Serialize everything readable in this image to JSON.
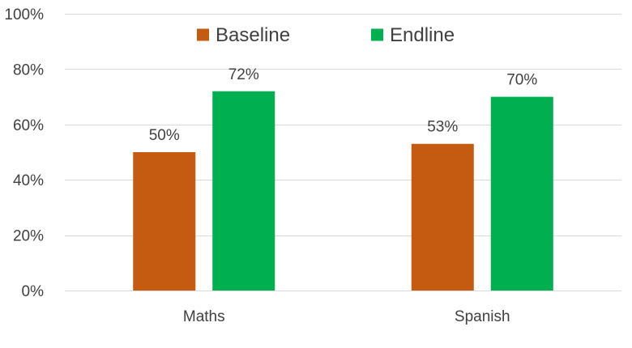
{
  "chart_data": {
    "type": "bar",
    "categories": [
      "Maths",
      "Spanish"
    ],
    "series": [
      {
        "name": "Baseline",
        "values": [
          50,
          53
        ],
        "labels": [
          "50%",
          "53%"
        ],
        "color": "#C55A11"
      },
      {
        "name": "Endline",
        "values": [
          72,
          70
        ],
        "labels": [
          "72%",
          "70%"
        ],
        "color": "#00B050"
      }
    ],
    "ylim": [
      0,
      100
    ],
    "yticks": [
      {
        "value": 0,
        "label": "0%"
      },
      {
        "value": 20,
        "label": "20%"
      },
      {
        "value": 40,
        "label": "40%"
      },
      {
        "value": 60,
        "label": "60%"
      },
      {
        "value": 80,
        "label": "80%"
      },
      {
        "value": 100,
        "label": "100%"
      }
    ],
    "grid": true,
    "legend_position": "top",
    "gridline_color": "#D9D9D9",
    "axis_color": "#D9D9D9"
  }
}
